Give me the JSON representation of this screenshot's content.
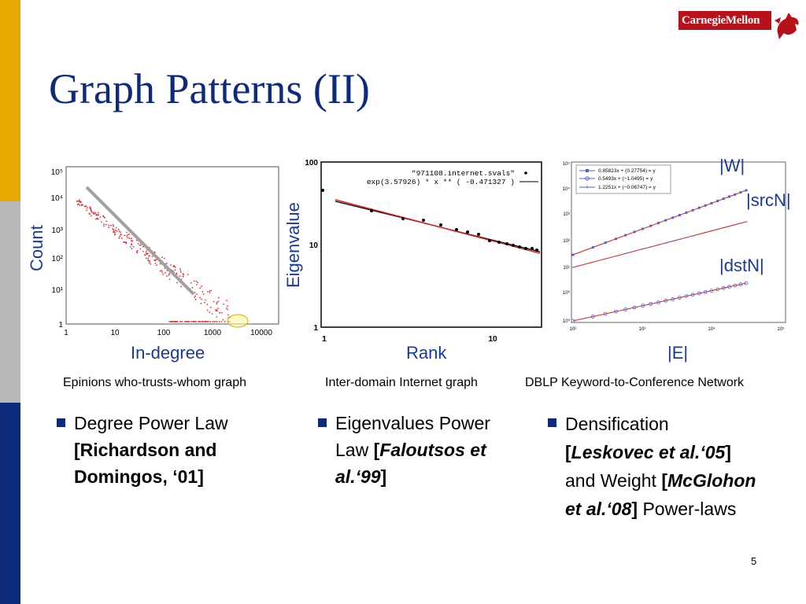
{
  "slide": {
    "title": "Graph Patterns (II)",
    "page_number": "5",
    "logo_text": "CarnegieMellon",
    "colors": {
      "title": "#0e2a7a",
      "label": "#1a3a9a",
      "bar_gold": "#e8a800",
      "bar_gray": "#b8b8b8",
      "bar_navy": "#0e2a7a",
      "logo_red": "#b5121b"
    }
  },
  "figures": {
    "epinions": {
      "ylabel": "Count",
      "xlabel": "In-degree",
      "caption": "Epinions who-trusts-whom graph",
      "xticks": [
        "1",
        "10",
        "100",
        "1000",
        "10000"
      ],
      "yticks": [
        "1",
        "10¹",
        "10²",
        "10³",
        "10⁴",
        "10⁵"
      ]
    },
    "internet": {
      "ylabel": "Eigenvalue",
      "xlabel": "Rank",
      "caption": "Inter-domain Internet graph",
      "xticks": [
        "1",
        "10"
      ],
      "yticks": [
        "1",
        "10",
        "100"
      ],
      "legend": [
        "\"971108.internet.svals\"",
        "exp(3.57926)  * x ** (  -0.471327 )"
      ]
    },
    "dblp": {
      "xlabel": "|E|",
      "caption": "DBLP Keyword-to-Conference Network",
      "series_labels": [
        "|W|",
        "|srcN|",
        "|dstN|"
      ],
      "legend": [
        "0.85823x + (0.27754) = y",
        "0.5493x + (−1.0495) = y",
        "1.2251x + (−0.06747) = y"
      ],
      "xticks": [
        "10²",
        "10³",
        "10⁴",
        "10⁵"
      ],
      "yticks": [
        "10⁰",
        "10¹",
        "10²",
        "10³",
        "10⁴",
        "10⁵",
        "10⁶"
      ]
    }
  },
  "bullets": {
    "b1": {
      "l1": "Degree Power Law",
      "l2": "[Richardson and",
      "l3": "Domingos, ‘01]"
    },
    "b2": {
      "l1": "Eigenvalues Power",
      "l2a": "Law ",
      "l2b": "[",
      "l2c": "Faloutsos et",
      "l3a": "al.‘99",
      "l3b": "]"
    },
    "b3": {
      "l1": "Densification",
      "l2a": "[",
      "l2b": "Leskovec et al.‘05",
      "l2c": "]",
      "l3a": "and Weight ",
      "l3b": "[",
      "l3c": "McGlohon",
      "l4a": "et al.‘08",
      "l4b": "]",
      "l4c": " Power-laws"
    }
  }
}
